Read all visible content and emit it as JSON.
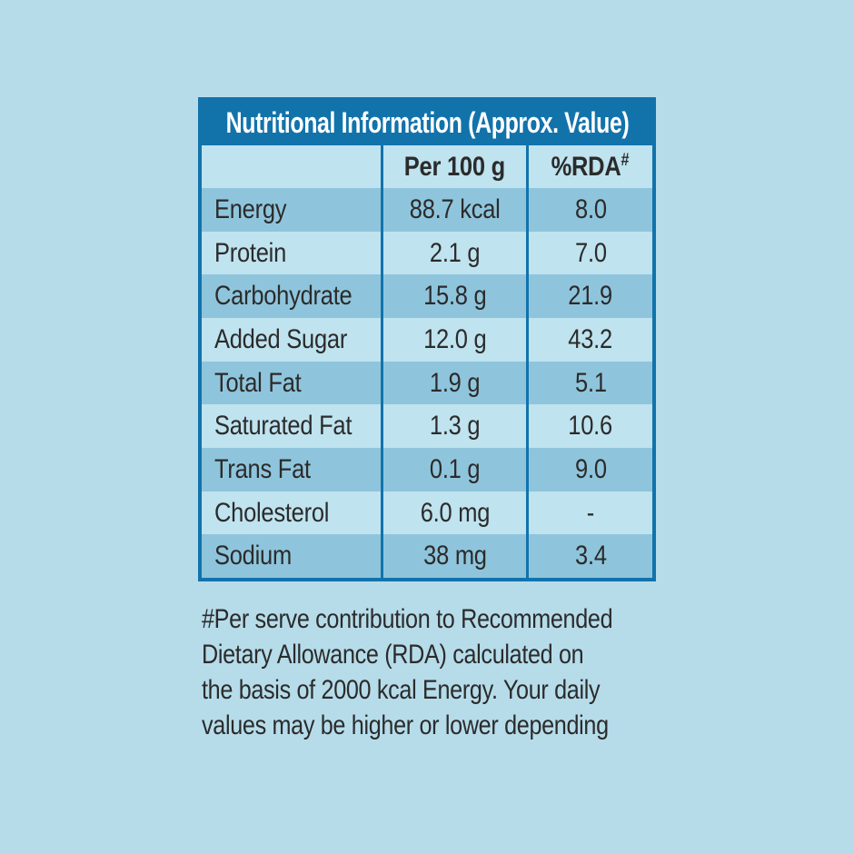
{
  "page": {
    "background_color": "#b6dcea"
  },
  "table": {
    "title": "Nutritional Information (Approx. Value)",
    "columns": {
      "blank": "",
      "per": "Per 100 g",
      "rda_base": "%RDA",
      "rda_sup": "#"
    },
    "rows": [
      {
        "label": "Energy",
        "per100g": "88.7 kcal",
        "rda": "8.0"
      },
      {
        "label": "Protein",
        "per100g": "2.1 g",
        "rda": "7.0"
      },
      {
        "label": "Carbohydrate",
        "per100g": "15.8 g",
        "rda": "21.9"
      },
      {
        "label": "Added Sugar",
        "per100g": "12.0 g",
        "rda": "43.2"
      },
      {
        "label": "Total Fat",
        "per100g": "1.9 g",
        "rda": "5.1"
      },
      {
        "label": "Saturated Fat",
        "per100g": "1.3 g",
        "rda": "10.6"
      },
      {
        "label": "Trans Fat",
        "per100g": "0.1 g",
        "rda": "9.0"
      },
      {
        "label": "Cholesterol",
        "per100g": "6.0 mg",
        "rda": "-"
      },
      {
        "label": "Sodium",
        "per100g": "38 mg",
        "rda": "3.4"
      }
    ],
    "colors": {
      "header_bg": "#1273ab",
      "header_text": "#ffffff",
      "border": "#1273ab",
      "row_dark": "#8fc5dc",
      "row_light": "#bfe3ef",
      "text": "#2b2b2b"
    }
  },
  "footnote": {
    "lines": [
      "#Per serve contribution to Recommended",
      "Dietary Allowance (RDA) calculated on",
      "the basis of 2000 kcal Energy. Your daily",
      "values may be higher or lower depending"
    ]
  }
}
